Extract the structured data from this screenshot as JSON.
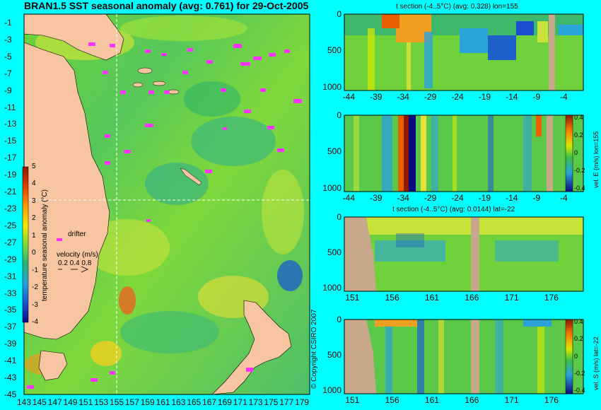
{
  "header": {
    "title": "BRAN1.5 SST seasonal anomaly (avg: 0.761) for 29-Oct-2005"
  },
  "map": {
    "lat_labels": [
      "-1",
      "-3",
      "-5",
      "-7",
      "-9",
      "-11",
      "-13",
      "-15",
      "-17",
      "-19",
      "-21",
      "-23",
      "-25",
      "-27",
      "-29",
      "-31",
      "-33",
      "-35",
      "-37",
      "-39",
      "-41",
      "-43",
      "-45"
    ],
    "lon_labels": [
      "143",
      "145",
      "147",
      "149",
      "151",
      "153",
      "155",
      "157",
      "159",
      "161",
      "163",
      "165",
      "167",
      "169",
      "171",
      "173",
      "175",
      "177",
      "179"
    ],
    "colorbar_label": "temperature seasonal anomaly (°C)",
    "colorbar_ticks": [
      "5",
      "4",
      "3",
      "2",
      "1",
      "0",
      "-1",
      "-2",
      "-3",
      "-4"
    ],
    "drifter_label": "drifter",
    "velocity_label": "velocity (m/s)",
    "velocity_scale": "0.2 0.4 0.8",
    "copyright": "© Copyright CSIRO 2007",
    "crosshair": {
      "lon": 155,
      "lat": -22
    }
  },
  "panels": {
    "p1": {
      "title": "t section (-4..5°C) (avg: 0.328) lon=155"
    },
    "p2": {
      "side_label": "vel. E (m/s) lon=155",
      "cb_ticks": [
        "0.4",
        "0.2",
        "0",
        "-0.2",
        "-0.4"
      ]
    },
    "p3": {
      "title": "t section (-4..5°C) (avg: 0.0144) lat=-22"
    },
    "p4": {
      "side_label": "vel. S (m/s) lat=-22",
      "cb_ticks": [
        "0.4",
        "0.2",
        "0",
        "-0.2",
        "-0.4"
      ]
    }
  },
  "chart_data": [
    {
      "type": "heatmap",
      "title": "BRAN1.5 SST seasonal anomaly (avg: 0.761) for 29-Oct-2005",
      "xlim": [
        143,
        180
      ],
      "ylim": [
        -45,
        0
      ],
      "x_ticks": [
        143,
        145,
        147,
        149,
        151,
        153,
        155,
        157,
        159,
        161,
        163,
        165,
        167,
        169,
        171,
        173,
        175,
        177,
        179
      ],
      "y_ticks": [
        -1,
        -3,
        -5,
        -7,
        -9,
        -11,
        -13,
        -15,
        -17,
        -19,
        -21,
        -23,
        -25,
        -27,
        -29,
        -31,
        -33,
        -35,
        -37,
        -39,
        -41,
        -43,
        -45
      ],
      "colorbar_range": [
        -4,
        5
      ],
      "avg": 0.761
    },
    {
      "type": "heatmap",
      "title": "t section (-4..5°C) (avg: 0.328) lon=155",
      "x_ticks": [
        "-44",
        "-39",
        "-34",
        "-29",
        "-24",
        "-19",
        "-14",
        "-9",
        "-4"
      ],
      "y_ticks": [
        "0",
        "500",
        "1000"
      ],
      "xlim": [
        -45,
        -1
      ],
      "ylim": [
        1050,
        0
      ],
      "avg": 0.328
    },
    {
      "type": "heatmap",
      "colorbar_label": "vel. E (m/s) lon=155",
      "x_ticks": [
        "-44",
        "-39",
        "-34",
        "-29",
        "-24",
        "-19",
        "-14",
        "-9",
        "-4"
      ],
      "y_ticks": [
        "0",
        "500",
        "1000"
      ],
      "xlim": [
        -45,
        -1
      ],
      "ylim": [
        1050,
        0
      ],
      "colorbar_range": [
        -0.4,
        0.4
      ]
    },
    {
      "type": "heatmap",
      "title": "t section (-4..5°C) (avg: 0.0144) lat=-22",
      "x_ticks": [
        "151",
        "156",
        "161",
        "166",
        "171",
        "176"
      ],
      "y_ticks": [
        "0",
        "500",
        "1000"
      ],
      "xlim": [
        150,
        180
      ],
      "ylim": [
        1050,
        0
      ],
      "avg": 0.0144
    },
    {
      "type": "heatmap",
      "colorbar_label": "vel. S (m/s) lat=-22",
      "x_ticks": [
        "151",
        "156",
        "161",
        "166",
        "171",
        "176"
      ],
      "y_ticks": [
        "0",
        "500",
        "1000"
      ],
      "xlim": [
        150,
        180
      ],
      "ylim": [
        1050,
        0
      ],
      "colorbar_range": [
        -0.4,
        0.4
      ]
    }
  ]
}
